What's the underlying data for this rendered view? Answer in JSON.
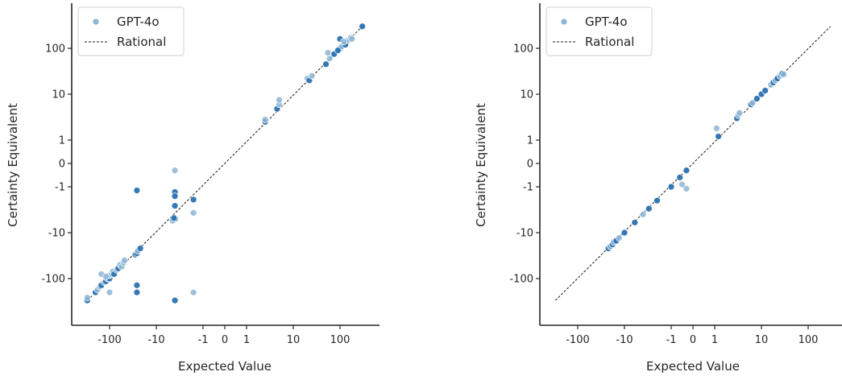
{
  "colors": {
    "point_light": "#8db5d4",
    "point_dark": "#2b72b0",
    "point_edge": "#ffffff",
    "rational_line": "#1a1a1a",
    "axis": "#262626"
  },
  "chart_data": [
    {
      "type": "scatter",
      "xlabel": "Expected Value",
      "ylabel": "Certainty Equivalent",
      "scale": "symlog",
      "xlim": [
        -400,
        400
      ],
      "ylim": [
        -400,
        400
      ],
      "x_ticks": [
        -100,
        -10,
        -1,
        0,
        1,
        10,
        100
      ],
      "x_tick_labels": [
        "-100",
        "-10",
        "-1",
        "0",
        "1",
        "10",
        "100"
      ],
      "y_ticks": [
        -100,
        -10,
        -1,
        0,
        1,
        10,
        100
      ],
      "y_tick_labels": [
        "-100",
        "-10",
        "-1",
        "0",
        "1",
        "10",
        "100"
      ],
      "legend": {
        "position": "top-left",
        "entries": [
          "GPT-4o",
          "Rational"
        ]
      },
      "rational_line": [
        [
          -300,
          -300
        ],
        [
          300,
          300
        ]
      ],
      "series": [
        {
          "name": "GPT-4o",
          "points": [
            [
              -300,
              -300,
              1
            ],
            [
              -300,
              -260,
              0
            ],
            [
              -200,
              -200,
              1
            ],
            [
              -180,
              -175,
              0
            ],
            [
              -160,
              -150,
              0
            ],
            [
              -150,
              -140,
              1
            ],
            [
              -130,
              -120,
              0
            ],
            [
              -120,
              -115,
              1
            ],
            [
              -110,
              -100,
              0
            ],
            [
              -100,
              -100,
              1
            ],
            [
              -100,
              -85,
              0
            ],
            [
              -90,
              -80,
              0
            ],
            [
              -85,
              -70,
              0
            ],
            [
              -80,
              -80,
              1
            ],
            [
              -70,
              -65,
              0
            ],
            [
              -65,
              -60,
              1
            ],
            [
              -60,
              -50,
              0
            ],
            [
              -55,
              -55,
              0
            ],
            [
              -50,
              -45,
              0
            ],
            [
              -48,
              -40,
              0
            ],
            [
              -150,
              -80,
              0
            ],
            [
              -120,
              -90,
              0
            ],
            [
              -100,
              -200,
              0
            ],
            [
              -28,
              -30,
              1
            ],
            [
              -26,
              -28,
              1
            ],
            [
              -25,
              -25,
              0
            ],
            [
              -22,
              -22,
              1
            ],
            [
              -26,
              -140,
              1
            ],
            [
              -26,
              -200,
              1
            ],
            [
              -26,
              -1.2,
              1
            ],
            [
              -4,
              -1.3,
              1
            ],
            [
              -4,
              -1.6,
              1
            ],
            [
              -4,
              -2.6,
              1
            ],
            [
              -4,
              -5,
              1
            ],
            [
              -4.5,
              -5.5,
              0
            ],
            [
              -4.2,
              -4.8,
              1
            ],
            [
              -4,
              -300,
              1
            ],
            [
              -4,
              -0.3,
              0
            ],
            [
              -1.6,
              -1.9,
              1
            ],
            [
              -1.6,
              -3.7,
              0
            ],
            [
              -1.6,
              -200,
              0
            ],
            [
              2.5,
              2.5,
              1
            ],
            [
              2.5,
              2.8,
              0
            ],
            [
              4.5,
              4.8,
              1
            ],
            [
              5,
              6,
              0
            ],
            [
              5,
              7.5,
              0
            ],
            [
              50,
              45,
              1
            ],
            [
              60,
              60,
              0
            ],
            [
              55,
              80,
              0
            ],
            [
              75,
              75,
              1
            ],
            [
              100,
              100,
              1
            ],
            [
              100,
              160,
              1
            ],
            [
              110,
              110,
              0
            ],
            [
              130,
              120,
              1
            ],
            [
              150,
              150,
              0
            ],
            [
              170,
              170,
              0
            ],
            [
              180,
              160,
              0
            ],
            [
              300,
              300,
              1
            ],
            [
              20,
              22,
              0
            ],
            [
              22,
              20,
              1
            ],
            [
              25,
              25,
              0
            ],
            [
              120,
              140,
              0
            ],
            [
              90,
              90,
              1
            ]
          ]
        }
      ]
    },
    {
      "type": "scatter",
      "xlabel": "Expected Value",
      "ylabel": "Certainty Equivalent",
      "scale": "symlog",
      "xlim": [
        -400,
        400
      ],
      "ylim": [
        -400,
        400
      ],
      "x_ticks": [
        -100,
        -10,
        -1,
        0,
        1,
        10,
        100
      ],
      "x_tick_labels": [
        "-100",
        "-10",
        "-1",
        "0",
        "1",
        "10",
        "100"
      ],
      "y_ticks": [
        -100,
        -10,
        -1,
        0,
        1,
        10,
        100
      ],
      "y_tick_labels": [
        "-100",
        "-10",
        "-1",
        "0",
        "1",
        "10",
        "100"
      ],
      "legend": {
        "position": "top-left",
        "entries": [
          "GPT-4o",
          "Rational"
        ]
      },
      "rational_line": [
        [
          -300,
          -300
        ],
        [
          300,
          300
        ]
      ],
      "series": [
        {
          "name": "GPT-4o",
          "points": [
            [
              -22,
              -22,
              1
            ],
            [
              -20,
              -20,
              0
            ],
            [
              -18,
              -18,
              1
            ],
            [
              -17,
              -16,
              0
            ],
            [
              -15,
              -15,
              1
            ],
            [
              -13,
              -13,
              0
            ],
            [
              -10,
              -10,
              1
            ],
            [
              -6,
              -6,
              1
            ],
            [
              -4,
              -4,
              0
            ],
            [
              -3,
              -3,
              1
            ],
            [
              -2,
              -2,
              1
            ],
            [
              -1,
              -1,
              1
            ],
            [
              -0.6,
              -0.6,
              1
            ],
            [
              -0.3,
              -0.3,
              1
            ],
            [
              -0.3,
              -1.1,
              0
            ],
            [
              -0.5,
              -0.9,
              0
            ],
            [
              1.2,
              1.2,
              1
            ],
            [
              1.1,
              1.8,
              0
            ],
            [
              3,
              3,
              1
            ],
            [
              3.2,
              3.5,
              0
            ],
            [
              3.4,
              3.9,
              0
            ],
            [
              6,
              6,
              1
            ],
            [
              6.5,
              6.5,
              0
            ],
            [
              8,
              8,
              1
            ],
            [
              10,
              10,
              1
            ],
            [
              12,
              12,
              1
            ],
            [
              16,
              16,
              0
            ],
            [
              18,
              18,
              1
            ],
            [
              20,
              20,
              0
            ],
            [
              22,
              22,
              1
            ],
            [
              25,
              25,
              0
            ],
            [
              28,
              28,
              1
            ],
            [
              30,
              27,
              0
            ]
          ]
        }
      ]
    }
  ]
}
